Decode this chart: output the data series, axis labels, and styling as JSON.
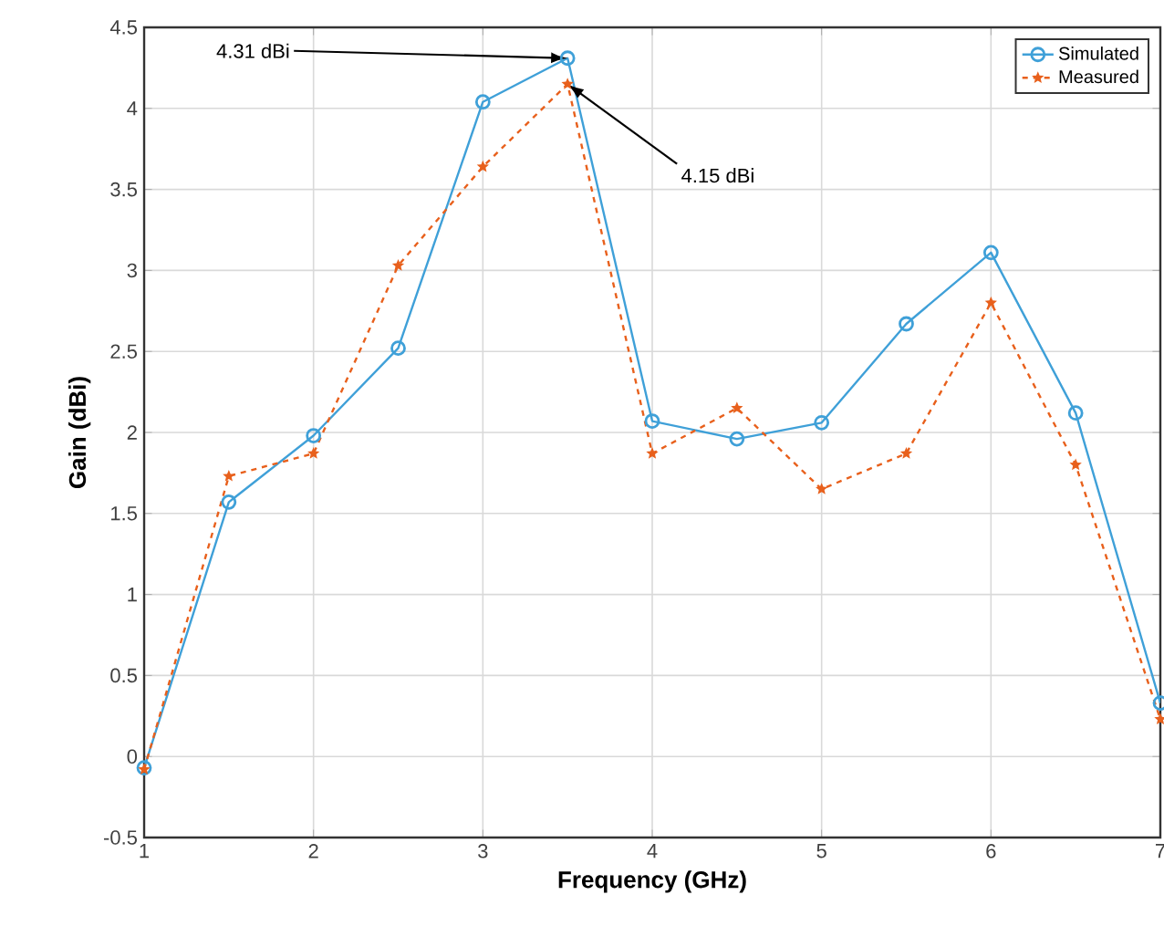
{
  "chart_data": {
    "type": "line",
    "xlabel": "Frequency (GHz)",
    "ylabel": "Gain (dBi)",
    "x": [
      1,
      1.5,
      2,
      2.5,
      3,
      3.5,
      4,
      4.5,
      5,
      5.5,
      6,
      6.5,
      7
    ],
    "series": [
      {
        "name": "Simulated",
        "color": "#3fa0d8",
        "marker": "circle",
        "line_style": "solid",
        "values": [
          -0.07,
          1.57,
          1.98,
          2.52,
          4.04,
          4.31,
          2.07,
          1.96,
          2.06,
          2.67,
          3.11,
          2.12,
          0.33
        ]
      },
      {
        "name": "Measured",
        "color": "#e8601c",
        "marker": "star",
        "line_style": "dashed",
        "values": [
          -0.08,
          1.73,
          1.87,
          3.03,
          3.64,
          4.15,
          1.87,
          2.15,
          1.65,
          1.87,
          2.8,
          1.8,
          0.23
        ]
      }
    ],
    "xlim": [
      1,
      7
    ],
    "xticks": [
      1,
      2,
      3,
      4,
      5,
      6,
      7
    ],
    "ylim": [
      -0.5,
      4.5
    ],
    "yticks": [
      -0.5,
      0,
      0.5,
      1,
      1.5,
      2,
      2.5,
      3,
      3.5,
      4,
      4.5
    ],
    "grid": true,
    "legend": "top right",
    "annotations": [
      {
        "text": "4.31 dBi",
        "x": 3.5,
        "y": 4.31
      },
      {
        "text": "4.15 dBi",
        "x": 3.5,
        "y": 4.15
      }
    ]
  }
}
